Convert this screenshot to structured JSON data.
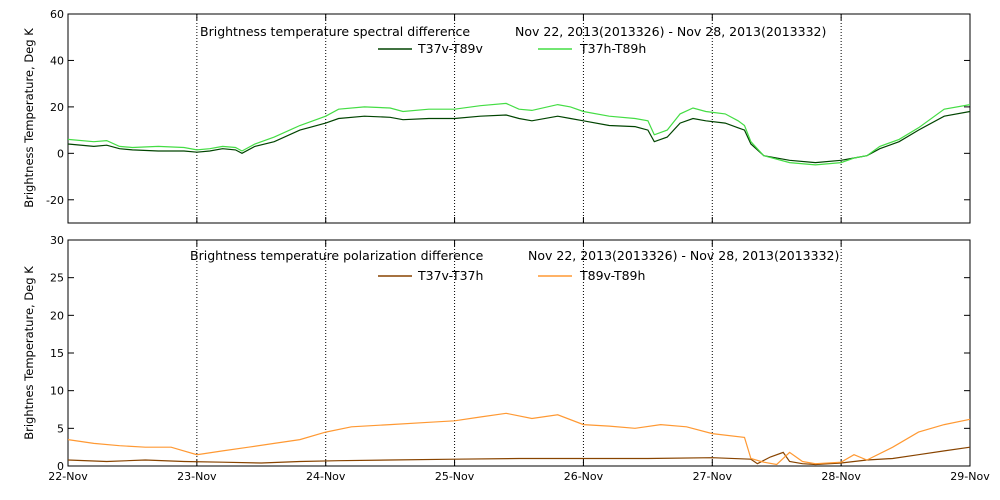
{
  "chart_data": [
    {
      "type": "line",
      "title": "Brightness temperature spectral difference",
      "date_range": "Nov 22, 2013(2013326)  -  Nov 28, 2013(2013332)",
      "ylabel": "Brightness Temperature, Deg K",
      "ylim": [
        -30,
        60
      ],
      "xlim": [
        0,
        7
      ],
      "x_unit": "days from 22-Nov",
      "xticks": [
        "22-Nov",
        "23-Nov",
        "24-Nov",
        "25-Nov",
        "26-Nov",
        "27-Nov",
        "28-Nov",
        "29-Nov"
      ],
      "yticks": [
        "-20",
        "0",
        "20",
        "40",
        "60"
      ],
      "yticks_values": [
        -20,
        0,
        20,
        40,
        60
      ],
      "grid": "vertical dotted at day boundaries",
      "legend_position": "top-center",
      "series": [
        {
          "name": "T37v-T89v",
          "color": "#004400",
          "points": [
            [
              0,
              4
            ],
            [
              0.2,
              3
            ],
            [
              0.3,
              3.5
            ],
            [
              0.4,
              2
            ],
            [
              0.5,
              1.5
            ],
            [
              0.7,
              1
            ],
            [
              0.9,
              1
            ],
            [
              1,
              0.5
            ],
            [
              1.1,
              1
            ],
            [
              1.2,
              2
            ],
            [
              1.3,
              1.5
            ],
            [
              1.35,
              0
            ],
            [
              1.45,
              3
            ],
            [
              1.6,
              5
            ],
            [
              1.8,
              10
            ],
            [
              2,
              13
            ],
            [
              2.1,
              15
            ],
            [
              2.3,
              16
            ],
            [
              2.5,
              15.5
            ],
            [
              2.6,
              14.5
            ],
            [
              2.8,
              15
            ],
            [
              3,
              15
            ],
            [
              3.2,
              16
            ],
            [
              3.4,
              16.5
            ],
            [
              3.5,
              15
            ],
            [
              3.6,
              14
            ],
            [
              3.8,
              16
            ],
            [
              3.9,
              15
            ],
            [
              4,
              14
            ],
            [
              4.2,
              12
            ],
            [
              4.4,
              11.5
            ],
            [
              4.5,
              10
            ],
            [
              4.55,
              5
            ],
            [
              4.65,
              7
            ],
            [
              4.75,
              13
            ],
            [
              4.85,
              15
            ],
            [
              4.95,
              14
            ],
            [
              5.1,
              13
            ],
            [
              5.2,
              11
            ],
            [
              5.25,
              10
            ],
            [
              5.3,
              4
            ],
            [
              5.4,
              -1
            ],
            [
              5.6,
              -3
            ],
            [
              5.8,
              -4
            ],
            [
              6,
              -3
            ],
            [
              6.1,
              -2
            ],
            [
              6.2,
              -1
            ],
            [
              6.3,
              2
            ],
            [
              6.45,
              5
            ],
            [
              6.6,
              10
            ],
            [
              6.8,
              16
            ],
            [
              7,
              18
            ]
          ]
        },
        {
          "name": "T37h-T89h",
          "color": "#44dd44",
          "points": [
            [
              0,
              6
            ],
            [
              0.2,
              5
            ],
            [
              0.3,
              5.5
            ],
            [
              0.4,
              3
            ],
            [
              0.5,
              2.5
            ],
            [
              0.7,
              3
            ],
            [
              0.9,
              2.5
            ],
            [
              1,
              1.5
            ],
            [
              1.1,
              2
            ],
            [
              1.2,
              3
            ],
            [
              1.3,
              2.5
            ],
            [
              1.35,
              1
            ],
            [
              1.45,
              4
            ],
            [
              1.6,
              7
            ],
            [
              1.8,
              12
            ],
            [
              2,
              16
            ],
            [
              2.1,
              19
            ],
            [
              2.3,
              20
            ],
            [
              2.5,
              19.5
            ],
            [
              2.6,
              18
            ],
            [
              2.8,
              19
            ],
            [
              3,
              19
            ],
            [
              3.2,
              20.5
            ],
            [
              3.4,
              21.5
            ],
            [
              3.5,
              19
            ],
            [
              3.6,
              18.5
            ],
            [
              3.8,
              21
            ],
            [
              3.9,
              20
            ],
            [
              4,
              18
            ],
            [
              4.2,
              16
            ],
            [
              4.4,
              15
            ],
            [
              4.5,
              14
            ],
            [
              4.55,
              8
            ],
            [
              4.65,
              10
            ],
            [
              4.75,
              17
            ],
            [
              4.85,
              19.5
            ],
            [
              4.95,
              18
            ],
            [
              5.1,
              17
            ],
            [
              5.2,
              14
            ],
            [
              5.25,
              12
            ],
            [
              5.3,
              5
            ],
            [
              5.4,
              -1
            ],
            [
              5.6,
              -4
            ],
            [
              5.8,
              -5
            ],
            [
              6,
              -4
            ],
            [
              6.1,
              -2
            ],
            [
              6.2,
              -1
            ],
            [
              6.3,
              3
            ],
            [
              6.45,
              6
            ],
            [
              6.6,
              11
            ],
            [
              6.8,
              19
            ],
            [
              7,
              21
            ]
          ]
        }
      ]
    },
    {
      "type": "line",
      "title": "Brightness temperature polarization difference",
      "date_range": "Nov 22, 2013(2013326)  -  Nov 28, 2013(2013332)",
      "ylabel": "Brightnes Temperature, Deg K",
      "ylim": [
        0,
        30
      ],
      "xlim": [
        0,
        7
      ],
      "x_unit": "days from 22-Nov",
      "xticks": [
        "22-Nov",
        "23-Nov",
        "24-Nov",
        "25-Nov",
        "26-Nov",
        "27-Nov",
        "28-Nov",
        "29-Nov"
      ],
      "yticks": [
        "0",
        "5",
        "10",
        "15",
        "20",
        "25",
        "30"
      ],
      "yticks_values": [
        0,
        5,
        10,
        15,
        20,
        25,
        30
      ],
      "grid": "vertical dotted at day boundaries",
      "legend_position": "top-center",
      "series": [
        {
          "name": "T37v-T37h",
          "color": "#884400",
          "points": [
            [
              0,
              0.8
            ],
            [
              0.3,
              0.6
            ],
            [
              0.6,
              0.8
            ],
            [
              0.9,
              0.6
            ],
            [
              1.2,
              0.5
            ],
            [
              1.5,
              0.4
            ],
            [
              1.8,
              0.6
            ],
            [
              2.1,
              0.7
            ],
            [
              2.5,
              0.8
            ],
            [
              3,
              0.9
            ],
            [
              3.5,
              1
            ],
            [
              4,
              1
            ],
            [
              4.5,
              1
            ],
            [
              5,
              1.1
            ],
            [
              5.3,
              0.9
            ],
            [
              5.35,
              0.3
            ],
            [
              5.45,
              1.2
            ],
            [
              5.55,
              1.8
            ],
            [
              5.6,
              0.6
            ],
            [
              5.7,
              0.3
            ],
            [
              5.8,
              0.2
            ],
            [
              6,
              0.4
            ],
            [
              6.2,
              0.8
            ],
            [
              6.4,
              1
            ],
            [
              6.6,
              1.5
            ],
            [
              6.8,
              2
            ],
            [
              7,
              2.5
            ]
          ]
        },
        {
          "name": "T89v-T89h",
          "color": "#ff9933",
          "points": [
            [
              0,
              3.5
            ],
            [
              0.2,
              3
            ],
            [
              0.4,
              2.7
            ],
            [
              0.6,
              2.5
            ],
            [
              0.8,
              2.5
            ],
            [
              1,
              1.5
            ],
            [
              1.2,
              2
            ],
            [
              1.4,
              2.5
            ],
            [
              1.6,
              3
            ],
            [
              1.8,
              3.5
            ],
            [
              2,
              4.5
            ],
            [
              2.2,
              5.2
            ],
            [
              2.5,
              5.5
            ],
            [
              2.8,
              5.8
            ],
            [
              3,
              6
            ],
            [
              3.2,
              6.5
            ],
            [
              3.4,
              7
            ],
            [
              3.6,
              6.3
            ],
            [
              3.8,
              6.8
            ],
            [
              4,
              5.5
            ],
            [
              4.2,
              5.3
            ],
            [
              4.4,
              5
            ],
            [
              4.6,
              5.5
            ],
            [
              4.8,
              5.2
            ],
            [
              5,
              4.3
            ],
            [
              5.25,
              3.8
            ],
            [
              5.3,
              1
            ],
            [
              5.4,
              0.5
            ],
            [
              5.5,
              0.2
            ],
            [
              5.6,
              1.8
            ],
            [
              5.7,
              0.6
            ],
            [
              5.8,
              0.3
            ],
            [
              6,
              0.5
            ],
            [
              6.1,
              1.5
            ],
            [
              6.2,
              0.8
            ],
            [
              6.4,
              2.5
            ],
            [
              6.6,
              4.5
            ],
            [
              6.8,
              5.5
            ],
            [
              7,
              6.2
            ]
          ]
        }
      ]
    }
  ]
}
